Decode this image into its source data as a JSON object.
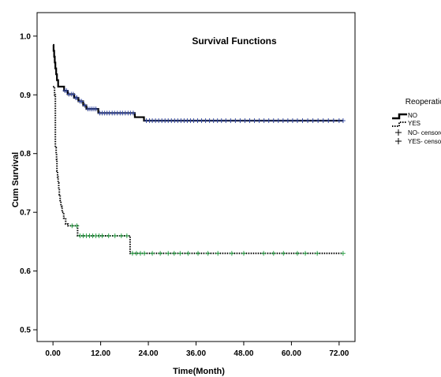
{
  "chart_data": {
    "type": "line",
    "title": "Survival Functions",
    "xlabel": "Time(Month)",
    "ylabel": "Cum Survival",
    "xlim": [
      -4,
      76
    ],
    "ylim": [
      0.48,
      1.04
    ],
    "xticks": [
      0,
      12,
      24,
      36,
      48,
      60,
      72
    ],
    "xtick_labels": [
      "0.00",
      "12.00",
      "24.00",
      "36.00",
      "48.00",
      "60.00",
      "72.00"
    ],
    "yticks": [
      0.5,
      0.6,
      0.7,
      0.8,
      0.9,
      1.0
    ],
    "ytick_labels": [
      "0.5",
      "0.6",
      "0.7",
      "0.8",
      "0.9",
      "1.0"
    ],
    "grid": false,
    "legend_title": "Reoperation",
    "legend_position": "right",
    "legend": [
      {
        "label": "NO",
        "style": "solid-step"
      },
      {
        "label": "YES",
        "style": "dotted-step"
      },
      {
        "label": "NO- censored",
        "style": "cross"
      },
      {
        "label": "YES- censored",
        "style": "cross"
      }
    ],
    "colors": {
      "no_line": "#000000",
      "yes_line": "#000000",
      "no_censor": "#3b4fa8",
      "yes_censor": "#2fa34a"
    },
    "series": [
      {
        "name": "NO",
        "style": "solid",
        "steps": [
          [
            0.0,
            0.985
          ],
          [
            0.15,
            0.975
          ],
          [
            0.3,
            0.965
          ],
          [
            0.45,
            0.955
          ],
          [
            0.6,
            0.945
          ],
          [
            0.8,
            0.935
          ],
          [
            1.0,
            0.925
          ],
          [
            1.3,
            0.914
          ],
          [
            2.8,
            0.907
          ],
          [
            3.7,
            0.901
          ],
          [
            5.3,
            0.895
          ],
          [
            6.4,
            0.889
          ],
          [
            7.6,
            0.882
          ],
          [
            8.4,
            0.876
          ],
          [
            11.4,
            0.869
          ],
          [
            20.6,
            0.862
          ],
          [
            22.9,
            0.856
          ],
          [
            73.0,
            0.856
          ]
        ],
        "censored_x": [
          3.0,
          3.4,
          4.0,
          4.6,
          5.1,
          5.7,
          6.0,
          6.8,
          7.2,
          8.0,
          8.8,
          9.3,
          9.8,
          10.3,
          10.8,
          11.8,
          12.4,
          13.0,
          13.6,
          14.2,
          14.9,
          15.5,
          16.2,
          16.9,
          17.5,
          18.2,
          18.9,
          19.5,
          20.2,
          23.5,
          24.3,
          25.0,
          25.8,
          26.6,
          27.4,
          28.2,
          29.0,
          29.8,
          30.6,
          31.4,
          32.2,
          33.0,
          33.8,
          34.6,
          35.4,
          36.4,
          37.4,
          38.4,
          39.4,
          40.4,
          41.4,
          42.4,
          43.5,
          44.7,
          45.9,
          47.1,
          48.3,
          49.5,
          50.7,
          51.9,
          53.1,
          54.3,
          55.5,
          56.7,
          57.9,
          59.1,
          60.3,
          61.5,
          62.8,
          64.1,
          65.4,
          66.7,
          68.0,
          69.3,
          70.6,
          72.0,
          73.0
        ]
      },
      {
        "name": "YES",
        "style": "dotted",
        "steps": [
          [
            0.0,
            0.914
          ],
          [
            0.4,
            0.9
          ],
          [
            0.6,
            0.81
          ],
          [
            0.8,
            0.8
          ],
          [
            0.9,
            0.79
          ],
          [
            1.0,
            0.77
          ],
          [
            1.15,
            0.76
          ],
          [
            1.3,
            0.75
          ],
          [
            1.45,
            0.74
          ],
          [
            1.6,
            0.73
          ],
          [
            1.8,
            0.72
          ],
          [
            2.0,
            0.71
          ],
          [
            2.3,
            0.7
          ],
          [
            2.7,
            0.69
          ],
          [
            3.2,
            0.68
          ],
          [
            3.8,
            0.677
          ],
          [
            6.2,
            0.66
          ],
          [
            19.4,
            0.63
          ],
          [
            73.0,
            0.63
          ]
        ],
        "censored_x": [
          4.8,
          6.0,
          6.8,
          7.6,
          8.4,
          9.2,
          10.0,
          10.8,
          11.6,
          12.4,
          14.0,
          15.6,
          17.2,
          18.6,
          20.0,
          21.0,
          22.0,
          23.0,
          25.0,
          27.0,
          29.0,
          30.5,
          32.0,
          34.0,
          36.5,
          39.0,
          41.5,
          45.0,
          48.0,
          53.0,
          55.5,
          58.0,
          61.5,
          63.5,
          66.5,
          73.0
        ]
      }
    ]
  }
}
